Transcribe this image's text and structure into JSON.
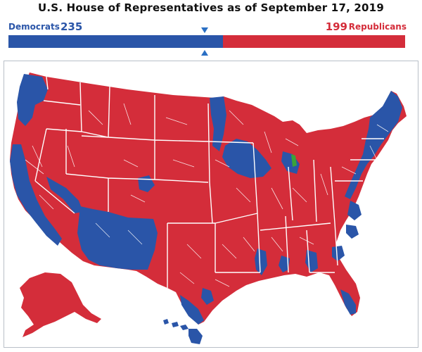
{
  "title": "U.S. House of Representatives as of September 17, 2019",
  "democrats": {
    "label": "Democrats",
    "seats": "235",
    "color": "#2a55a8"
  },
  "republicans": {
    "label": "Republicans",
    "seats": "199",
    "color": "#d42d3a"
  },
  "seat_bar": {
    "democrats_share": 0.541,
    "republicans_share": 0.459,
    "majority_marker": "triangle-icon"
  },
  "map": {
    "features": [
      "us-district-map",
      "alaska",
      "hawaii"
    ]
  }
}
